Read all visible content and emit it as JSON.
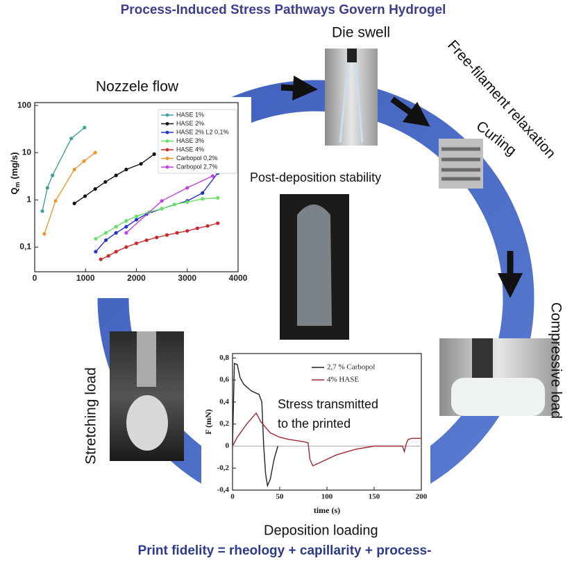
{
  "title": "Process-Induced Stress Pathways Govern Hydrogel",
  "footer": "Print fidelity = rheology + capillarity + process-",
  "labels": {
    "nozzle_flow": "Nozzele flow",
    "die_swell": "Die swell",
    "free_filament": "Free-filament relaxation",
    "curling": "Curling",
    "post_deposition": "Post-deposition stability",
    "compressive": "Compressive load",
    "stretching": "Stretching load",
    "deposition": "Deposition loading",
    "stress_note": [
      "Stress transmitted",
      "to the printed"
    ]
  },
  "chart_data": [
    {
      "type": "line",
      "y_label": {
        "symbol": "Q",
        "subscript": "m",
        "unit": "(mg/s)"
      },
      "log_y": true,
      "markers": true,
      "xlim": [
        0,
        4000
      ],
      "xticks": [
        0,
        1000,
        2000,
        3000,
        4000
      ],
      "ylim": [
        0.03,
        115
      ],
      "yticks": [
        {
          "value": 0.1,
          "label": "0,1"
        },
        1,
        10,
        100
      ],
      "series": [
        {
          "name": "HASE 1%",
          "color": "#3f9f9a",
          "x": [
            150,
            250,
            350,
            720,
            980
          ],
          "values": [
            0.58,
            1.8,
            3.3,
            20,
            34
          ]
        },
        {
          "name": "HASE 2%",
          "color": "#111111",
          "x": [
            780,
            990,
            1190,
            1390,
            1600,
            1800,
            2090,
            2350
          ],
          "values": [
            0.84,
            1.2,
            1.7,
            2.4,
            3.3,
            4.4,
            5.8,
            9.3
          ]
        },
        {
          "name": "HASE 2% L2 0,1%",
          "color": "#2233cc",
          "x": [
            1200,
            1400,
            1600,
            1800,
            2000,
            2200,
            2500,
            3000,
            3300,
            3600
          ],
          "values": [
            0.08,
            0.14,
            0.2,
            0.27,
            0.38,
            0.5,
            0.65,
            0.95,
            1.4,
            3.7
          ]
        },
        {
          "name": "HASE 3%",
          "color": "#66e066",
          "x": [
            1200,
            1400,
            1600,
            1800,
            2000,
            2250,
            2500,
            2750,
            3000,
            3300,
            3600
          ],
          "values": [
            0.15,
            0.2,
            0.27,
            0.36,
            0.45,
            0.55,
            0.65,
            0.8,
            0.9,
            1.05,
            1.1
          ]
        },
        {
          "name": "HASE 4%",
          "color": "#cc2a2a",
          "x": [
            1300,
            1450,
            1600,
            1800,
            2000,
            2200,
            2400,
            2600,
            2800,
            3000,
            3200,
            3400,
            3600
          ],
          "values": [
            0.055,
            0.065,
            0.08,
            0.1,
            0.12,
            0.14,
            0.16,
            0.18,
            0.2,
            0.22,
            0.25,
            0.28,
            0.32
          ]
        },
        {
          "name": "Carbopol 0,2%",
          "color": "#f0962a",
          "x": [
            190,
            410,
            780,
            970,
            1190
          ],
          "values": [
            0.19,
            0.95,
            4.4,
            6.6,
            10
          ]
        },
        {
          "name": "Carbopol 2,7%",
          "color": "#c040e0",
          "x": [
            1800,
            2500,
            3000,
            3500
          ],
          "values": [
            0.2,
            0.95,
            1.8,
            3.2
          ]
        }
      ]
    },
    {
      "type": "line",
      "x_label": "time (s)",
      "y_label": "F (mN)",
      "log_y": false,
      "markers": false,
      "zero_line": true,
      "xlim": [
        0,
        200
      ],
      "xticks": [
        0,
        50,
        100,
        150,
        200
      ],
      "ylim": [
        -0.4,
        0.84
      ],
      "yticks": [
        {
          "value": 0.8,
          "label": "0,8"
        },
        {
          "value": 0.6,
          "label": "0,6"
        },
        {
          "value": 0.4,
          "label": "0,4"
        },
        {
          "value": 0.2,
          "label": "0,2"
        },
        0,
        {
          "value": -0.2,
          "label": "-0,2"
        },
        {
          "value": -0.4,
          "label": "-0,4"
        }
      ],
      "series": [
        {
          "name": "2,7 % Carbopol",
          "color": "#222222",
          "x": [
            0,
            1,
            2,
            5,
            8,
            12,
            20,
            28,
            31,
            33,
            35,
            37,
            40,
            44,
            48
          ],
          "values": [
            0,
            0.4,
            0.75,
            0.74,
            0.62,
            0.56,
            0.5,
            0.47,
            0.4,
            0.0,
            -0.25,
            -0.36,
            -0.3,
            -0.12,
            0
          ]
        },
        {
          "name": "4% HASE",
          "color": "#a0262e",
          "x": [
            0,
            5,
            15,
            25,
            30,
            40,
            50,
            60,
            75,
            80,
            82,
            85,
            95,
            110,
            130,
            150,
            180,
            182,
            184,
            186,
            190,
            200
          ],
          "values": [
            0,
            0.08,
            0.2,
            0.3,
            0.22,
            0.12,
            0.08,
            0.06,
            0.04,
            0.03,
            -0.12,
            -0.18,
            -0.14,
            -0.08,
            -0.03,
            0,
            0,
            -0.05,
            0.02,
            0.06,
            0.07,
            0.07
          ]
        }
      ]
    }
  ]
}
